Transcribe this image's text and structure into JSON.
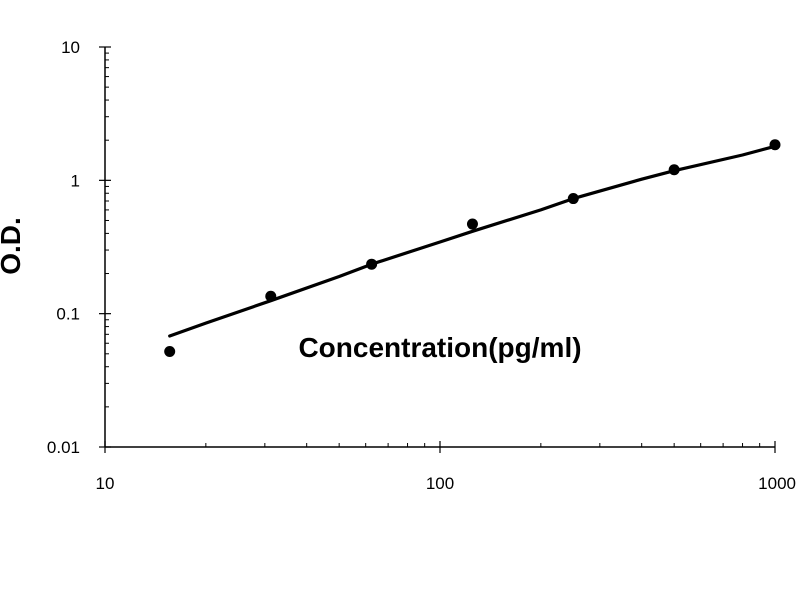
{
  "chart_data": {
    "type": "scatter",
    "title": "",
    "xlabel": "Concentration(pg/ml)",
    "ylabel": "O.D.",
    "xscale": "log",
    "yscale": "log",
    "xlim": [
      10,
      1000
    ],
    "ylim": [
      0.01,
      10
    ],
    "x_ticks": [
      10,
      100,
      1000
    ],
    "x_tick_labels": [
      "10",
      "100",
      "1000"
    ],
    "y_ticks": [
      0.01,
      0.1,
      1,
      10
    ],
    "y_tick_labels": [
      "0.01",
      "0.1",
      "1",
      "10"
    ],
    "grid": false,
    "legend": "none",
    "point_color": "#000000",
    "line_color": "#000000",
    "series": [
      {
        "x": [
          15.6,
          31.25,
          62.5,
          125,
          250,
          500,
          1000
        ],
        "y": [
          0.052,
          0.135,
          0.235,
          0.47,
          0.73,
          1.2,
          1.85
        ]
      }
    ],
    "fit_curve": {
      "x": [
        15.6,
        20,
        31.25,
        50,
        62.5,
        100,
        125,
        200,
        250,
        400,
        500,
        800,
        1000
      ],
      "y": [
        0.068,
        0.085,
        0.125,
        0.19,
        0.235,
        0.345,
        0.415,
        0.6,
        0.73,
        1.02,
        1.18,
        1.55,
        1.8
      ]
    }
  }
}
